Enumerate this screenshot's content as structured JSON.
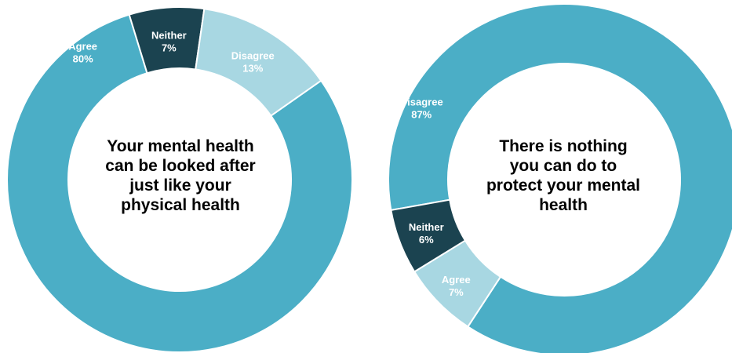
{
  "chart_data": [
    {
      "type": "pie",
      "subtype": "donut",
      "title": "Your mental health\ncan be looked after\njust like your\nphysical health",
      "slices": [
        {
          "label": "Agree",
          "value": 80,
          "display": "80%",
          "color": "#4BAEC6"
        },
        {
          "label": "Neither",
          "value": 7,
          "display": "7%",
          "color": "#1B4350"
        },
        {
          "label": "Disagree",
          "value": 13,
          "display": "13%",
          "color": "#A8D7E2"
        }
      ]
    },
    {
      "type": "pie",
      "subtype": "donut",
      "title": "There is nothing\nyou can do to\nprotect your mental\nhealth",
      "slices": [
        {
          "label": "Disagree",
          "value": 87,
          "display": "87%",
          "color": "#4BAEC6"
        },
        {
          "label": "Agree",
          "value": 7,
          "display": "7%",
          "color": "#A8D7E2"
        },
        {
          "label": "Neither",
          "value": 6,
          "display": "6%",
          "color": "#1B4350"
        }
      ]
    }
  ]
}
